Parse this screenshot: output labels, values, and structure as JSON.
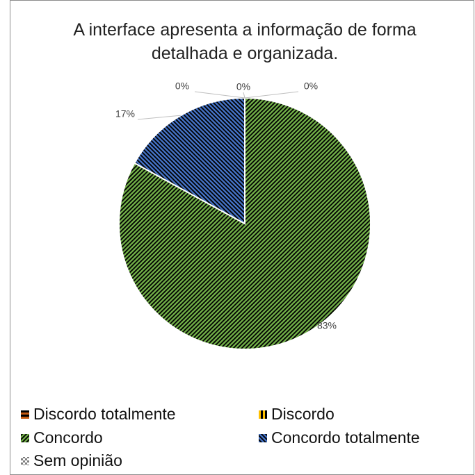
{
  "chart_data": {
    "type": "pie",
    "title": "A interface apresenta a informação de forma detalhada e organizada.",
    "categories": [
      "Discordo totalmente",
      "Discordo",
      "Concordo",
      "Concordo totalmente",
      "Sem opinião"
    ],
    "values": [
      0,
      0,
      83,
      17,
      0
    ],
    "value_labels": [
      "0%",
      "0%",
      "83%",
      "17%",
      "0%"
    ],
    "colors": [
      "#c55a11",
      "#ffc000",
      "#70ad47",
      "#4472c4",
      "#7f7f7f"
    ],
    "legend": "bottom"
  }
}
